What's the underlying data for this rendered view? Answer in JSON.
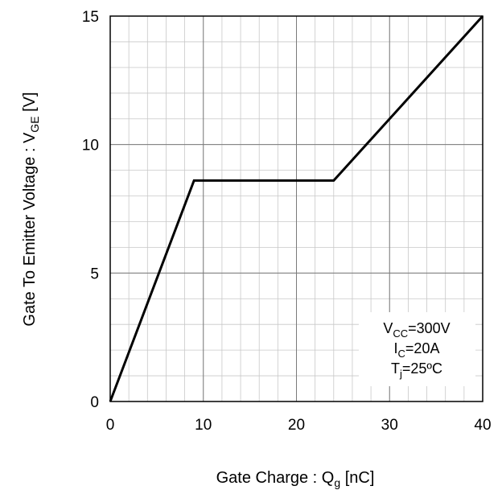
{
  "chart_data": {
    "type": "line",
    "xlabel": {
      "main": "Gate Charge : Q",
      "sub": "g",
      "unit": " [nC]"
    },
    "ylabel": {
      "main": "Gate To Emitter Voltage : V",
      "sub": "GE",
      "unit": " [V]"
    },
    "xlim": [
      0,
      40
    ],
    "ylim": [
      0,
      15
    ],
    "x_ticks": [
      "0",
      "10",
      "20",
      "30",
      "40"
    ],
    "y_ticks": [
      "0",
      "5",
      "10",
      "15"
    ],
    "minor_grid_x_step": 2,
    "minor_grid_y_step": 1,
    "series": [
      {
        "points": [
          [
            0,
            0
          ],
          [
            9,
            8.6
          ],
          [
            24,
            8.6
          ],
          [
            40,
            15
          ]
        ]
      }
    ],
    "annotations": [
      {
        "pre": "V",
        "sub": "CC",
        "post": "=300V"
      },
      {
        "pre": "I",
        "sub": "C",
        "post": "=20A"
      },
      {
        "pre": "T",
        "sub": "j",
        "post": "=25ºC"
      }
    ]
  }
}
